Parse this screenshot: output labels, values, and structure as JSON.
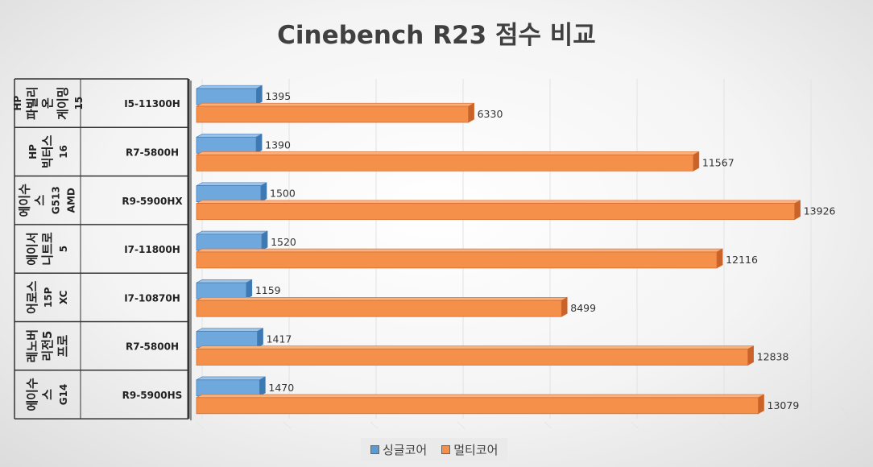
{
  "chart_data": {
    "type": "bar",
    "orientation": "horizontal",
    "title": "Cinebench R23 점수 비교",
    "xlim": [
      0,
      15000
    ],
    "grid": true,
    "legend_position": "bottom",
    "categories": [
      {
        "product": "HP 파빌리온 게이밍15",
        "cpu": "I5-11300H"
      },
      {
        "product": "HP 빅터스 16",
        "cpu": "R7-5800H"
      },
      {
        "product": "에이수스 G513 AMD",
        "cpu": "R9-5900HX"
      },
      {
        "product": "에이서 니트로5",
        "cpu": "I7-11800H"
      },
      {
        "product": "어로스 15P XC",
        "cpu": "I7-10870H"
      },
      {
        "product": "레노버 리전5 프로",
        "cpu": "R7-5800H"
      },
      {
        "product": "에이수스 G14",
        "cpu": "R9-5900HS"
      }
    ],
    "series": [
      {
        "name": "싱글코어",
        "color": "#5b9bd5",
        "values": [
          1395,
          1390,
          1500,
          1520,
          1159,
          1417,
          1470
        ]
      },
      {
        "name": "멀티코어",
        "color": "#f4904a",
        "values": [
          6330,
          11567,
          13926,
          12116,
          8499,
          12838,
          13079
        ]
      }
    ]
  }
}
